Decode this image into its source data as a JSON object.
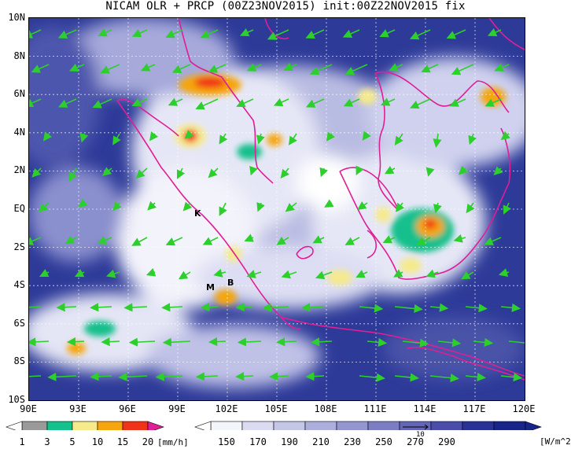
{
  "title": "NICAM OLR + PRCP (00Z23NOV2015) init:00Z22NOV2015 fix",
  "y_axis": [
    "10N",
    "8N",
    "6N",
    "4N",
    "2N",
    "EQ",
    "2S",
    "4S",
    "6S",
    "8S",
    "10S"
  ],
  "x_axis": [
    "90E",
    "93E",
    "96E",
    "99E",
    "102E",
    "105E",
    "108E",
    "111E",
    "114E",
    "117E",
    "120E"
  ],
  "map_labels": {
    "k": "K",
    "m": "M",
    "b": "B"
  },
  "precip_legend": {
    "ticks": [
      "1",
      "3",
      "5",
      "10",
      "15",
      "20"
    ],
    "unit": "[mm/h]",
    "colors": [
      "#9a9a9a",
      "#14c08c",
      "#f5ea8c",
      "#f5a60e",
      "#f03218",
      "#e01e96"
    ]
  },
  "olr_legend": {
    "ticks": [
      "150",
      "170",
      "190",
      "210",
      "230",
      "250",
      "270",
      "290"
    ],
    "unit": "[W/m^2]",
    "colors": [
      "#f4f4fb",
      "#dcdcf0",
      "#c4c6e6",
      "#acaedc",
      "#9496d0",
      "#7c7ec4",
      "#6466b8",
      "#4a4eaa",
      "#2a3296",
      "#182488"
    ]
  },
  "vector_ref": {
    "label": "10"
  }
}
